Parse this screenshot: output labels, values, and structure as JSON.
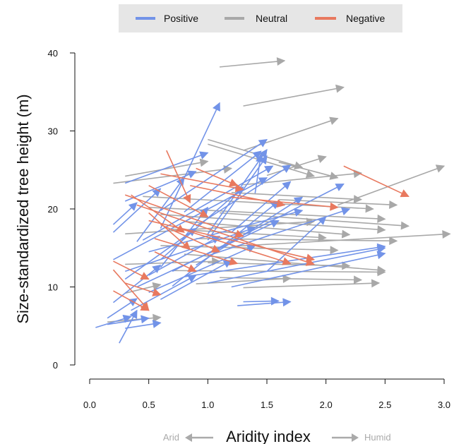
{
  "chart_data": {
    "type": "arrow-scatter",
    "title": "",
    "xlabel": "Aridity index",
    "ylabel": "Size-standardized tree height (m)",
    "xlim": [
      0,
      3
    ],
    "ylim": [
      0,
      40
    ],
    "x_ticks": [
      "0.0",
      "0.5",
      "1.0",
      "1.5",
      "2.0",
      "2.5",
      "3.0"
    ],
    "y_ticks": [
      "0",
      "10",
      "20",
      "30",
      "40"
    ],
    "x_direction": {
      "left": "Arid",
      "right": "Humid"
    },
    "legend": {
      "placement": "top",
      "entries": [
        {
          "name": "Positive",
          "color": "#7293E8"
        },
        {
          "name": "Neutral",
          "color": "#A8A8A8"
        },
        {
          "name": "Negative",
          "color": "#E8795F"
        }
      ]
    },
    "series": [
      {
        "name": "Neutral",
        "color": "#A8A8A8",
        "arrows": [
          [
            1.1,
            38.2,
            1.65,
            39.0
          ],
          [
            1.3,
            33.2,
            2.15,
            35.6
          ],
          [
            1.3,
            27.5,
            2.1,
            31.6
          ],
          [
            2.1,
            20.5,
            3.0,
            25.5
          ],
          [
            1.2,
            15.2,
            3.05,
            16.8
          ],
          [
            1.0,
            28.9,
            1.8,
            25.3
          ],
          [
            1.0,
            28.3,
            1.9,
            24.2
          ],
          [
            0.45,
            21.6,
            2.4,
            20.0
          ],
          [
            0.5,
            20.2,
            2.5,
            18.7
          ],
          [
            0.6,
            19.3,
            2.5,
            17.3
          ],
          [
            0.8,
            18.4,
            2.2,
            16.7
          ],
          [
            0.7,
            17.4,
            2.0,
            16.3
          ],
          [
            0.9,
            16.2,
            2.6,
            15.9
          ],
          [
            0.6,
            15.3,
            2.1,
            14.7
          ],
          [
            0.8,
            14.2,
            2.5,
            12.1
          ],
          [
            1.0,
            13.1,
            2.2,
            12.7
          ],
          [
            0.7,
            12.1,
            2.5,
            11.9
          ],
          [
            1.1,
            11.2,
            2.3,
            10.9
          ],
          [
            1.3,
            9.9,
            2.45,
            10.5
          ],
          [
            0.9,
            10.4,
            1.7,
            11.1
          ],
          [
            0.3,
            9.2,
            0.6,
            10.3
          ],
          [
            0.3,
            12.9,
            1.1,
            13.3
          ],
          [
            0.2,
            23.3,
            1.2,
            25.2
          ],
          [
            0.3,
            24.2,
            1.0,
            26.1
          ],
          [
            1.5,
            24.3,
            2.0,
            26.7
          ],
          [
            1.3,
            23.1,
            2.3,
            24.6
          ],
          [
            1.2,
            22.1,
            2.3,
            21.2
          ],
          [
            1.6,
            21.2,
            2.6,
            20.5
          ],
          [
            1.1,
            19.5,
            2.7,
            17.8
          ],
          [
            0.3,
            16.8,
            1.9,
            18.4
          ],
          [
            1.6,
            26.0,
            2.1,
            24.0
          ],
          [
            0.15,
            5.5,
            0.6,
            6.1
          ]
        ]
      },
      {
        "name": "Positive",
        "color": "#7293E8",
        "arrows": [
          [
            0.6,
            17.5,
            1.1,
            33.6
          ],
          [
            0.2,
            18.0,
            0.4,
            20.8
          ],
          [
            0.3,
            23.3,
            1.0,
            27.2
          ],
          [
            0.6,
            19.8,
            1.5,
            28.9
          ],
          [
            1.0,
            16.0,
            1.5,
            26.8
          ],
          [
            0.2,
            13.5,
            1.5,
            24.0
          ],
          [
            0.45,
            16.0,
            1.55,
            25.5
          ],
          [
            0.6,
            13.5,
            1.3,
            22.8
          ],
          [
            0.7,
            12.0,
            2.15,
            23.2
          ],
          [
            0.9,
            12.8,
            1.8,
            21.5
          ],
          [
            1.0,
            14.0,
            2.2,
            20.0
          ],
          [
            0.5,
            14.5,
            1.8,
            19.8
          ],
          [
            0.4,
            10.0,
            1.6,
            18.5
          ],
          [
            0.3,
            12.0,
            1.4,
            17.6
          ],
          [
            0.5,
            11.5,
            1.1,
            16.5
          ],
          [
            0.8,
            11.3,
            2.5,
            15.2
          ],
          [
            1.0,
            10.5,
            2.5,
            15.0
          ],
          [
            1.2,
            10.0,
            2.5,
            14.3
          ],
          [
            0.5,
            9.3,
            1.4,
            15.3
          ],
          [
            0.6,
            8.4,
            1.2,
            13.4
          ],
          [
            0.35,
            7.0,
            0.9,
            11.5
          ],
          [
            0.2,
            8.0,
            0.6,
            12.8
          ],
          [
            0.15,
            6.0,
            0.4,
            8.5
          ],
          [
            0.05,
            4.8,
            0.35,
            6.2
          ],
          [
            0.15,
            5.2,
            0.5,
            6.0
          ],
          [
            0.3,
            4.7,
            0.6,
            5.4
          ],
          [
            0.25,
            2.8,
            0.4,
            7.0
          ],
          [
            0.7,
            10.1,
            1.6,
            21.0
          ],
          [
            0.4,
            15.8,
            0.8,
            24.0
          ],
          [
            0.2,
            17.0,
            0.6,
            22.6
          ],
          [
            0.8,
            19.6,
            1.45,
            27.4
          ],
          [
            0.9,
            17.8,
            1.7,
            25.6
          ],
          [
            1.3,
            8.1,
            1.6,
            8.2
          ],
          [
            1.5,
            12.0,
            2.0,
            19.0
          ],
          [
            1.0,
            16.8,
            1.5,
            27.6
          ],
          [
            0.6,
            12.5,
            1.0,
            20.2
          ],
          [
            1.4,
            22.0,
            1.45,
            27.0
          ],
          [
            0.3,
            21.0,
            0.9,
            24.8
          ],
          [
            1.2,
            17.0,
            1.7,
            23.5
          ],
          [
            0.3,
            11.0,
            0.9,
            17.5
          ],
          [
            1.25,
            7.6,
            1.7,
            8.1
          ]
        ]
      },
      {
        "name": "Negative",
        "color": "#E8795F",
        "arrows": [
          [
            2.15,
            25.5,
            2.7,
            21.6
          ],
          [
            0.65,
            27.5,
            0.85,
            20.8
          ],
          [
            0.3,
            21.8,
            1.3,
            16.5
          ],
          [
            0.4,
            20.5,
            1.9,
            12.9
          ],
          [
            0.5,
            18.5,
            1.9,
            13.5
          ],
          [
            0.7,
            17.8,
            1.7,
            13.0
          ],
          [
            0.55,
            16.2,
            1.25,
            13.0
          ],
          [
            0.2,
            12.2,
            0.5,
            7.0
          ],
          [
            0.2,
            9.5,
            0.5,
            7.0
          ],
          [
            0.6,
            24.5,
            1.3,
            22.5
          ],
          [
            0.5,
            23.0,
            1.0,
            19.0
          ],
          [
            0.35,
            21.8,
            0.8,
            17.0
          ],
          [
            0.5,
            19.5,
            0.85,
            14.8
          ],
          [
            1.2,
            21.5,
            2.1,
            20.2
          ],
          [
            0.2,
            13.3,
            0.5,
            11.0
          ],
          [
            0.6,
            18.0,
            1.1,
            14.5
          ],
          [
            0.85,
            23.0,
            1.65,
            20.5
          ],
          [
            0.55,
            14.5,
            0.9,
            12.0
          ],
          [
            0.3,
            10.5,
            0.6,
            9.0
          ],
          [
            0.9,
            25.2,
            1.25,
            23.0
          ]
        ]
      }
    ]
  }
}
